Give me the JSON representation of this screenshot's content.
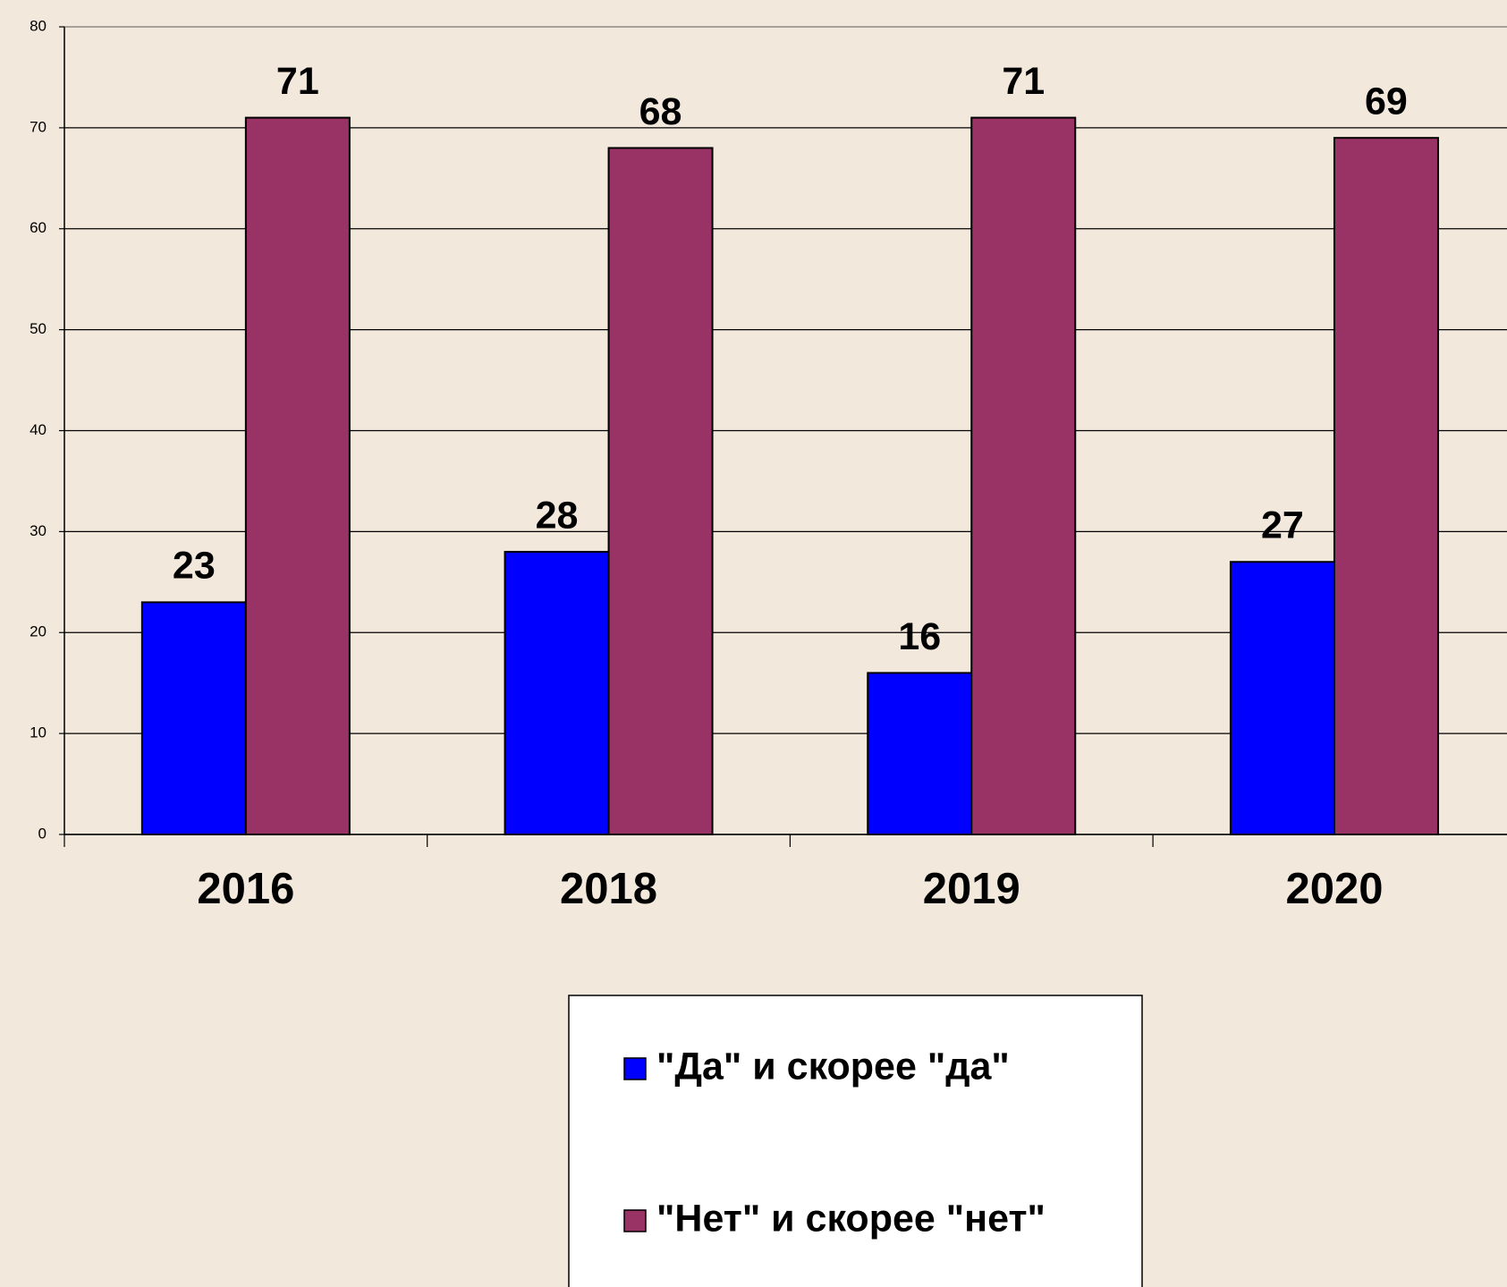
{
  "chart_data": {
    "type": "bar",
    "categories": [
      "2016",
      "2018",
      "2019",
      "2020"
    ],
    "series": [
      {
        "name": "\"Да\" и скорее \"да\"",
        "color": "#0000ff",
        "values": [
          23,
          28,
          16,
          27
        ]
      },
      {
        "name": "\"Нет\" и скорее \"нет\"",
        "color": "#993366",
        "values": [
          71,
          68,
          71,
          69
        ]
      }
    ],
    "ylim": [
      0,
      80
    ],
    "yticks": [
      0,
      10,
      20,
      30,
      40,
      50,
      60,
      70,
      80
    ],
    "grid": true,
    "legend": "bottom"
  }
}
